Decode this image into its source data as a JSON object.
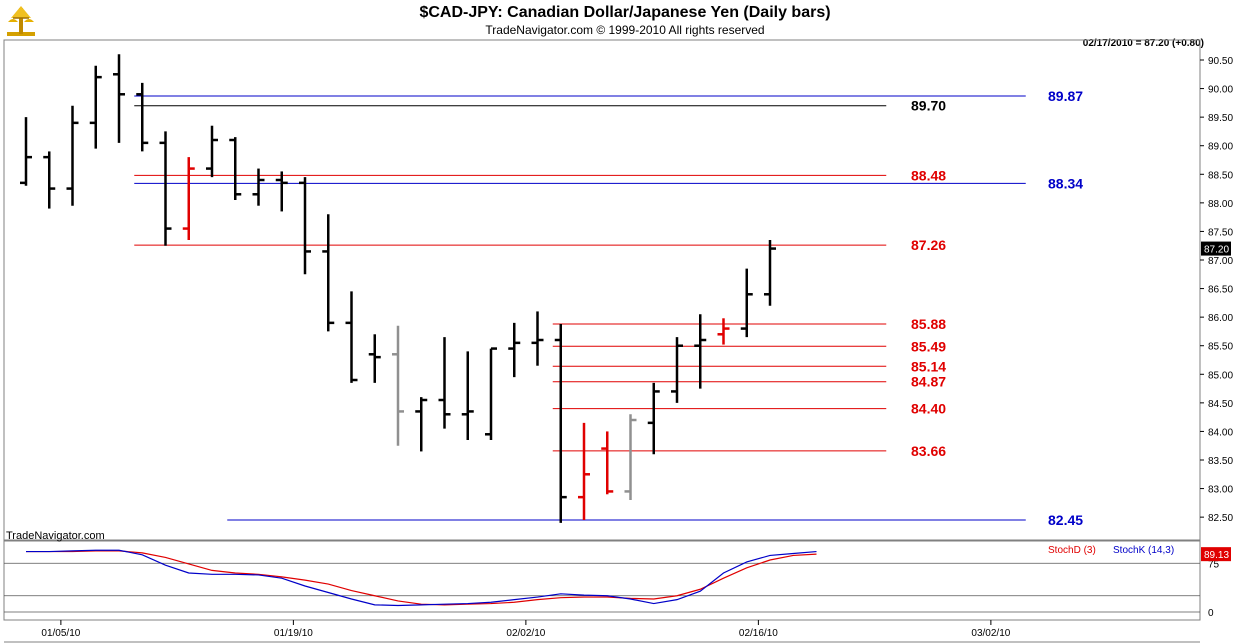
{
  "header": {
    "title": "$CAD-JPY:  Canadian Dollar/Japanese Yen  (Daily bars)",
    "subtitle": "TradeNavigator.com © 1999-2010 All rights reserved",
    "quote": "02/17/2010 = 87.20 (+0.80)",
    "watermark": "TradeNavigator.com"
  },
  "colors": {
    "up": "#000000",
    "down_red": "#e00000",
    "down_gray": "#909090",
    "level_red": "#e00000",
    "level_blue": "#0000c8",
    "stoch_d": "#e00000",
    "stoch_k": "#0000c8",
    "axis": "#808080"
  },
  "chart_data": [
    {
      "type": "ohlc",
      "title": "$CAD-JPY:  Canadian Dollar/Japanese Yen  (Daily bars)",
      "ylim": [
        82.1,
        90.85
      ],
      "y_ticks": [
        82.5,
        83.0,
        83.5,
        84.0,
        84.5,
        85.0,
        85.5,
        86.0,
        86.5,
        87.0,
        87.5,
        88.0,
        88.5,
        89.0,
        89.5,
        90.0,
        90.5
      ],
      "y_tick_labels": [
        "82.50",
        "83.00",
        "83.50",
        "84.00",
        "84.50",
        "85.00",
        "85.50",
        "86.00",
        "86.50",
        "87.00",
        "87.50",
        "88.00",
        "88.50",
        "89.00",
        "89.50",
        "90.00",
        "90.50"
      ],
      "x_tick_labels": [
        {
          "label": "01/05/10",
          "bar": 1.5
        },
        {
          "label": "01/19/10",
          "bar": 11.5
        },
        {
          "label": "02/02/10",
          "bar": 21.5
        },
        {
          "label": "02/16/10",
          "bar": 31.5
        },
        {
          "label": "03/02/10",
          "bar": 41.5
        }
      ],
      "last_price_label": "87.20",
      "bars": [
        {
          "date": "12/30/09",
          "o": 88.35,
          "h": 89.5,
          "l": 88.3,
          "c": 88.8,
          "color": "up"
        },
        {
          "date": "12/31/09",
          "o": 88.8,
          "h": 88.9,
          "l": 87.9,
          "c": 88.25,
          "color": "up"
        },
        {
          "date": "01/01/10",
          "o": 88.25,
          "h": 89.7,
          "l": 87.95,
          "c": 89.4,
          "color": "up"
        },
        {
          "date": "01/04/10",
          "o": 89.4,
          "h": 90.4,
          "l": 88.95,
          "c": 90.2,
          "color": "up"
        },
        {
          "date": "01/05/10",
          "o": 90.25,
          "h": 90.6,
          "l": 89.05,
          "c": 89.9,
          "color": "up"
        },
        {
          "date": "01/06/10",
          "o": 89.9,
          "h": 90.1,
          "l": 88.9,
          "c": 89.05,
          "color": "up"
        },
        {
          "date": "01/07/10",
          "o": 89.05,
          "h": 89.25,
          "l": 87.25,
          "c": 87.55,
          "color": "up"
        },
        {
          "date": "01/08/10",
          "o": 87.55,
          "h": 88.8,
          "l": 87.35,
          "c": 88.6,
          "color": "down_red"
        },
        {
          "date": "01/11/10",
          "o": 88.6,
          "h": 89.35,
          "l": 88.45,
          "c": 89.1,
          "color": "up"
        },
        {
          "date": "01/12/10",
          "o": 89.1,
          "h": 89.15,
          "l": 88.05,
          "c": 88.15,
          "color": "up"
        },
        {
          "date": "01/13/10",
          "o": 88.15,
          "h": 88.6,
          "l": 87.95,
          "c": 88.4,
          "color": "up"
        },
        {
          "date": "01/14/10",
          "o": 88.4,
          "h": 88.55,
          "l": 87.85,
          "c": 88.35,
          "color": "up"
        },
        {
          "date": "01/15/10",
          "o": 88.35,
          "h": 88.45,
          "l": 86.75,
          "c": 87.15,
          "color": "up"
        },
        {
          "date": "01/18/10",
          "o": 87.15,
          "h": 87.8,
          "l": 85.75,
          "c": 85.9,
          "color": "up"
        },
        {
          "date": "01/19/10",
          "o": 85.9,
          "h": 86.45,
          "l": 84.85,
          "c": 84.9,
          "color": "up"
        },
        {
          "date": "01/20/10",
          "o": 85.35,
          "h": 85.7,
          "l": 84.85,
          "c": 85.3,
          "color": "up"
        },
        {
          "date": "01/21/10",
          "o": 85.35,
          "h": 85.85,
          "l": 83.75,
          "c": 84.35,
          "color": "down_gray"
        },
        {
          "date": "01/22/10",
          "o": 84.35,
          "h": 84.6,
          "l": 83.65,
          "c": 84.55,
          "color": "up"
        },
        {
          "date": "01/25/10",
          "o": 84.55,
          "h": 85.65,
          "l": 84.05,
          "c": 84.3,
          "color": "up"
        },
        {
          "date": "01/26/10",
          "o": 84.3,
          "h": 85.4,
          "l": 83.85,
          "c": 84.35,
          "color": "up"
        },
        {
          "date": "01/27/10",
          "o": 83.95,
          "h": 85.45,
          "l": 83.85,
          "c": 85.45,
          "color": "up"
        },
        {
          "date": "01/28/10",
          "o": 85.45,
          "h": 85.9,
          "l": 84.95,
          "c": 85.55,
          "color": "up"
        },
        {
          "date": "01/29/10",
          "o": 85.55,
          "h": 86.1,
          "l": 85.15,
          "c": 85.6,
          "color": "up"
        },
        {
          "date": "02/01/10",
          "o": 85.6,
          "h": 85.88,
          "l": 82.4,
          "c": 82.85,
          "color": "up"
        },
        {
          "date": "02/02/10",
          "o": 82.85,
          "h": 84.15,
          "l": 82.45,
          "c": 83.25,
          "color": "down_red"
        },
        {
          "date": "02/03/10",
          "o": 83.7,
          "h": 84.0,
          "l": 82.9,
          "c": 82.95,
          "color": "down_red"
        },
        {
          "date": "02/04/10",
          "o": 82.95,
          "h": 84.3,
          "l": 82.8,
          "c": 84.2,
          "color": "down_gray"
        },
        {
          "date": "02/05/10",
          "o": 84.15,
          "h": 84.85,
          "l": 83.6,
          "c": 84.7,
          "color": "up"
        },
        {
          "date": "02/08/10",
          "o": 84.7,
          "h": 85.65,
          "l": 84.5,
          "c": 85.5,
          "color": "up"
        },
        {
          "date": "02/09/10",
          "o": 85.5,
          "h": 86.05,
          "l": 84.75,
          "c": 85.6,
          "color": "up"
        },
        {
          "date": "02/10/10",
          "o": 85.7,
          "h": 85.98,
          "l": 85.52,
          "c": 85.8,
          "color": "down_red"
        },
        {
          "date": "02/11/10",
          "o": 85.8,
          "h": 86.85,
          "l": 85.65,
          "c": 86.4,
          "color": "up"
        },
        {
          "date": "02/12/10",
          "o": 86.4,
          "h": 87.35,
          "l": 86.2,
          "c": 87.2,
          "color": "up"
        }
      ],
      "levels": [
        {
          "value": 89.87,
          "label": "89.87",
          "color": "level_blue",
          "from_bar": 5,
          "to_bar": 43,
          "label_side": "right"
        },
        {
          "value": 89.7,
          "label": "89.70",
          "color": "up",
          "from_bar": 5,
          "to_bar": 37,
          "label_side": "mid"
        },
        {
          "value": 88.48,
          "label": "88.48",
          "color": "level_red",
          "from_bar": 5,
          "to_bar": 37,
          "label_side": "mid"
        },
        {
          "value": 88.34,
          "label": "88.34",
          "color": "level_blue",
          "from_bar": 5,
          "to_bar": 43,
          "label_side": "right"
        },
        {
          "value": 87.26,
          "label": "87.26",
          "color": "level_red",
          "from_bar": 5,
          "to_bar": 37,
          "label_side": "mid"
        },
        {
          "value": 85.88,
          "label": "85.88",
          "color": "level_red",
          "from_bar": 23,
          "to_bar": 37,
          "label_side": "mid"
        },
        {
          "value": 85.49,
          "label": "85.49",
          "color": "level_red",
          "from_bar": 23,
          "to_bar": 37,
          "label_side": "mid"
        },
        {
          "value": 85.14,
          "label": "85.14",
          "color": "level_red",
          "from_bar": 23,
          "to_bar": 37,
          "label_side": "mid"
        },
        {
          "value": 84.87,
          "label": "84.87",
          "color": "level_red",
          "from_bar": 23,
          "to_bar": 37,
          "label_side": "mid"
        },
        {
          "value": 84.4,
          "label": "84.40",
          "color": "level_red",
          "from_bar": 23,
          "to_bar": 37,
          "label_side": "mid"
        },
        {
          "value": 83.66,
          "label": "83.66",
          "color": "level_red",
          "from_bar": 23,
          "to_bar": 37,
          "label_side": "mid"
        },
        {
          "value": 82.45,
          "label": "82.45",
          "color": "level_blue",
          "from_bar": 9,
          "to_bar": 43,
          "label_side": "right"
        }
      ]
    },
    {
      "type": "line",
      "title": "",
      "ylim": [
        0,
        100
      ],
      "y_ticks": [
        0,
        75
      ],
      "y_tick_labels": [
        "0",
        "75"
      ],
      "legend": [
        "StochD (3)",
        "StochK (14,3)"
      ],
      "last_value_label": "89.13",
      "series": [
        {
          "name": "StochD (3)",
          "color": "stoch_d",
          "values": [
            93,
            93,
            93,
            94,
            94,
            91,
            84,
            74,
            64,
            60,
            58,
            54,
            49,
            43,
            33,
            25,
            17,
            12,
            11,
            12,
            13,
            15,
            19,
            22,
            23,
            23,
            21,
            20,
            25,
            35,
            52,
            68,
            80,
            87,
            89
          ]
        },
        {
          "name": "StochK (14,3)",
          "color": "stoch_k",
          "values": [
            93,
            93,
            94,
            95,
            95,
            88,
            72,
            60,
            58,
            58,
            57,
            52,
            40,
            30,
            20,
            11,
            10,
            11,
            12,
            13,
            15,
            19,
            23,
            28,
            26,
            25,
            20,
            13,
            19,
            32,
            60,
            77,
            87,
            90,
            93
          ]
        }
      ]
    }
  ]
}
